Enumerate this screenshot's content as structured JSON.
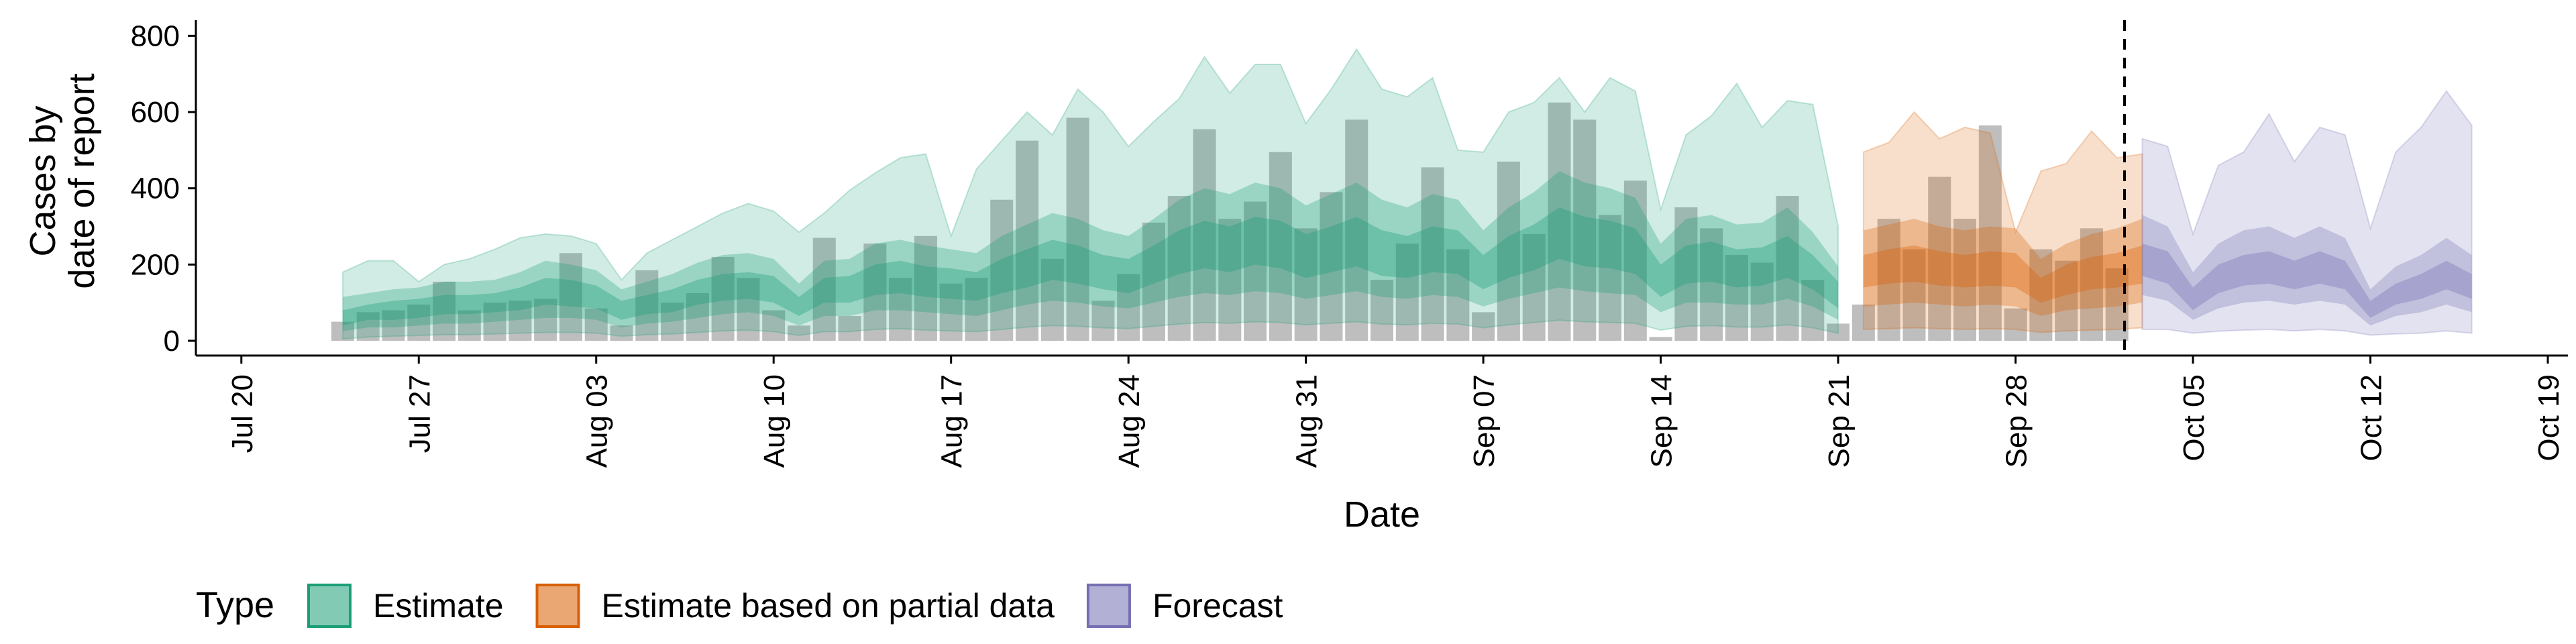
{
  "chart_data": {
    "type": "area",
    "xlabel": "Date",
    "ylabel_lines": [
      "Cases by",
      "date of report"
    ],
    "x_domain": [
      "2020-07-19",
      "2020-10-19"
    ],
    "ylim": [
      0,
      820
    ],
    "y_ticks": [
      0,
      200,
      400,
      600,
      800
    ],
    "x_ticks": [
      {
        "date": "2020-07-20",
        "label": "Jul 20"
      },
      {
        "date": "2020-07-27",
        "label": "Jul 27"
      },
      {
        "date": "2020-08-03",
        "label": "Aug 03"
      },
      {
        "date": "2020-08-10",
        "label": "Aug 10"
      },
      {
        "date": "2020-08-17",
        "label": "Aug 17"
      },
      {
        "date": "2020-08-24",
        "label": "Aug 24"
      },
      {
        "date": "2020-08-31",
        "label": "Aug 31"
      },
      {
        "date": "2020-09-07",
        "label": "Sep 07"
      },
      {
        "date": "2020-09-14",
        "label": "Sep 14"
      },
      {
        "date": "2020-09-21",
        "label": "Sep 21"
      },
      {
        "date": "2020-09-28",
        "label": "Sep 28"
      },
      {
        "date": "2020-10-05",
        "label": "Oct 05"
      },
      {
        "date": "2020-10-12",
        "label": "Oct 12"
      },
      {
        "date": "2020-10-19",
        "label": "Oct 19"
      }
    ],
    "grid": false,
    "forecast_date": "2020-10-02",
    "legend": {
      "title": "Type",
      "placement": "bottom",
      "entries": [
        {
          "label": "Estimate",
          "fill": "#1b9e77",
          "border": "#1b9e77"
        },
        {
          "label": "Estimate based on partial data",
          "fill": "#d95f02",
          "border": "#d95f02"
        },
        {
          "label": "Forecast",
          "fill": "#7570b3",
          "border": "#7570b3"
        }
      ]
    },
    "observed_cases": {
      "start_date": "2020-07-24",
      "color": "#b3b3b3",
      "values": [
        50,
        75,
        80,
        95,
        155,
        80,
        100,
        105,
        110,
        230,
        85,
        40,
        185,
        100,
        125,
        220,
        165,
        80,
        40,
        270,
        65,
        255,
        165,
        275,
        150,
        165,
        370,
        525,
        215,
        585,
        105,
        175,
        310,
        380,
        555,
        320,
        365,
        495,
        295,
        390,
        580,
        160,
        255,
        455,
        240,
        75,
        470,
        280,
        625,
        580,
        330,
        420,
        10,
        350,
        295,
        225,
        205,
        380,
        160,
        45,
        95,
        320,
        240,
        430,
        320,
        565,
        85,
        240,
        210,
        295,
        190
      ]
    },
    "series": [
      {
        "name": "Estimate",
        "color": "#1b9e77",
        "start_date": "2020-07-24",
        "median": [
          60,
          75,
          80,
          85,
          95,
          95,
          100,
          110,
          130,
          125,
          115,
          80,
          95,
          105,
          125,
          140,
          145,
          135,
          90,
          130,
          135,
          160,
          165,
          155,
          150,
          140,
          170,
          190,
          210,
          200,
          180,
          170,
          200,
          230,
          250,
          240,
          260,
          250,
          220,
          240,
          260,
          230,
          220,
          240,
          230,
          180,
          220,
          245,
          280,
          260,
          250,
          235,
          160,
          200,
          205,
          190,
          195,
          220,
          180,
          120
        ],
        "lower20": [
          40,
          55,
          55,
          60,
          70,
          70,
          75,
          80,
          95,
          90,
          85,
          55,
          70,
          75,
          95,
          105,
          110,
          100,
          65,
          100,
          100,
          120,
          125,
          115,
          110,
          105,
          125,
          140,
          160,
          150,
          135,
          125,
          150,
          175,
          190,
          180,
          200,
          190,
          165,
          180,
          195,
          170,
          165,
          180,
          175,
          135,
          165,
          185,
          215,
          195,
          190,
          175,
          115,
          150,
          155,
          140,
          145,
          165,
          135,
          85
        ],
        "upper20": [
          80,
          95,
          105,
          110,
          120,
          120,
          125,
          140,
          165,
          160,
          145,
          105,
          120,
          135,
          160,
          175,
          180,
          170,
          115,
          165,
          170,
          200,
          210,
          195,
          190,
          180,
          215,
          240,
          265,
          250,
          225,
          215,
          250,
          290,
          315,
          300,
          325,
          315,
          280,
          300,
          325,
          290,
          275,
          300,
          290,
          225,
          275,
          305,
          350,
          325,
          315,
          295,
          200,
          250,
          260,
          240,
          245,
          275,
          225,
          155
        ],
        "lower50": [
          25,
          35,
          35,
          40,
          45,
          45,
          50,
          55,
          60,
          60,
          55,
          35,
          45,
          50,
          60,
          70,
          75,
          65,
          40,
          65,
          65,
          80,
          80,
          75,
          70,
          65,
          80,
          95,
          105,
          100,
          90,
          85,
          100,
          115,
          125,
          120,
          130,
          125,
          110,
          120,
          130,
          115,
          110,
          120,
          115,
          90,
          110,
          125,
          140,
          130,
          125,
          120,
          75,
          100,
          100,
          95,
          95,
          110,
          90,
          55
        ],
        "upper50": [
          115,
          125,
          135,
          140,
          155,
          155,
          160,
          180,
          210,
          200,
          185,
          135,
          155,
          175,
          205,
          225,
          230,
          215,
          150,
          210,
          215,
          255,
          265,
          250,
          240,
          230,
          275,
          305,
          335,
          320,
          290,
          275,
          320,
          370,
          400,
          385,
          415,
          400,
          355,
          385,
          415,
          370,
          350,
          385,
          370,
          290,
          350,
          390,
          445,
          415,
          400,
          375,
          255,
          320,
          330,
          305,
          310,
          350,
          285,
          195
        ],
        "lower90": [
          5,
          10,
          12,
          14,
          16,
          16,
          18,
          20,
          22,
          22,
          20,
          12,
          16,
          18,
          22,
          26,
          28,
          24,
          14,
          24,
          24,
          30,
          32,
          28,
          26,
          24,
          30,
          36,
          40,
          38,
          34,
          32,
          38,
          44,
          48,
          46,
          50,
          48,
          42,
          46,
          50,
          44,
          42,
          46,
          44,
          34,
          42,
          48,
          54,
          50,
          48,
          46,
          28,
          38,
          40,
          36,
          36,
          42,
          34,
          20
        ],
        "upper90": [
          180,
          210,
          210,
          155,
          200,
          215,
          240,
          270,
          280,
          275,
          255,
          160,
          230,
          265,
          300,
          335,
          360,
          340,
          285,
          335,
          395,
          440,
          480,
          490,
          275,
          450,
          525,
          600,
          540,
          660,
          600,
          510,
          575,
          635,
          745,
          650,
          725,
          725,
          570,
          660,
          765,
          660,
          640,
          690,
          500,
          495,
          600,
          625,
          690,
          600,
          690,
          655,
          345,
          540,
          590,
          675,
          560,
          630,
          620,
          300
        ]
      },
      {
        "name": "Estimate based on partial data",
        "color": "#d95f02",
        "start_date": "2020-09-22",
        "median": [
          180,
          190,
          200,
          190,
          180,
          190,
          185,
          130,
          160,
          175,
          185,
          200
        ],
        "lower20": [
          140,
          150,
          155,
          145,
          140,
          145,
          140,
          100,
          120,
          135,
          140,
          150
        ],
        "upper20": [
          225,
          240,
          250,
          235,
          225,
          235,
          230,
          165,
          200,
          220,
          230,
          250
        ],
        "lower50": [
          90,
          95,
          100,
          95,
          90,
          95,
          90,
          65,
          80,
          85,
          90,
          100
        ],
        "upper50": [
          290,
          305,
          320,
          300,
          290,
          300,
          295,
          215,
          255,
          280,
          295,
          320
        ],
        "lower90": [
          30,
          32,
          34,
          32,
          30,
          32,
          30,
          22,
          26,
          28,
          30,
          34
        ],
        "upper90": [
          495,
          520,
          600,
          530,
          560,
          545,
          285,
          445,
          465,
          550,
          480,
          490
        ]
      },
      {
        "name": "Forecast",
        "color": "#7570b3",
        "start_date": "2020-10-03",
        "median": [
          210,
          190,
          110,
          160,
          180,
          190,
          170,
          190,
          170,
          80,
          120,
          140,
          170,
          140
        ],
        "lower20": [
          170,
          150,
          80,
          125,
          145,
          150,
          135,
          150,
          135,
          60,
          95,
          110,
          135,
          110
        ],
        "upper20": [
          255,
          235,
          140,
          200,
          225,
          235,
          210,
          235,
          210,
          105,
          150,
          175,
          210,
          175
        ],
        "lower50": [
          120,
          105,
          55,
          85,
          100,
          105,
          95,
          105,
          95,
          40,
          65,
          75,
          95,
          75
        ],
        "upper50": [
          330,
          300,
          180,
          255,
          290,
          300,
          270,
          300,
          270,
          135,
          195,
          225,
          270,
          225
        ],
        "lower90": [
          30,
          30,
          20,
          25,
          28,
          30,
          26,
          30,
          26,
          15,
          18,
          20,
          26,
          20
        ],
        "upper90": [
          530,
          510,
          280,
          460,
          495,
          595,
          470,
          560,
          540,
          295,
          495,
          560,
          655,
          565
        ]
      }
    ]
  }
}
